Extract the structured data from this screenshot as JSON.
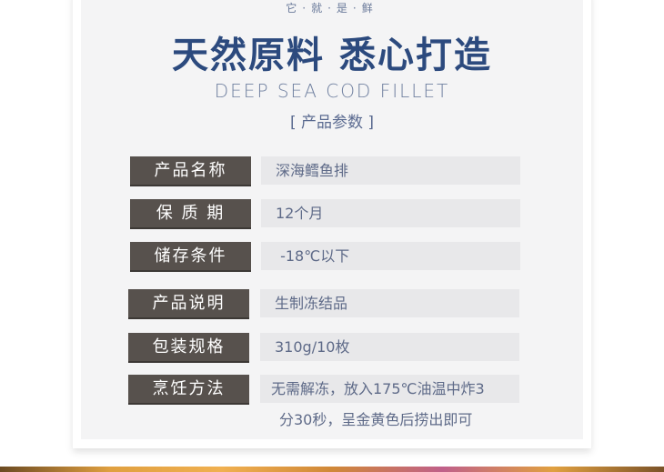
{
  "header": {
    "tagline": "它·就·是·鲜",
    "title": "天然原料  悉心打造",
    "english": "DEEP SEA COD FILLET",
    "section": "[ 产品参数 ]"
  },
  "params": [
    {
      "label": "产品名称",
      "value": "深海鳕鱼排"
    },
    {
      "label": "保 质 期",
      "value": "12个月"
    },
    {
      "label": "储存条件",
      "value": " -18℃以下"
    },
    {
      "label": "产品说明",
      "value": "生制冻结品"
    },
    {
      "label": "包装规格",
      "value": "310g/10枚"
    },
    {
      "label": "烹饪方法",
      "value": "无需解冻，放入175℃油温中炸3",
      "value2": "分30秒，呈金黄色后捞出即可"
    }
  ]
}
